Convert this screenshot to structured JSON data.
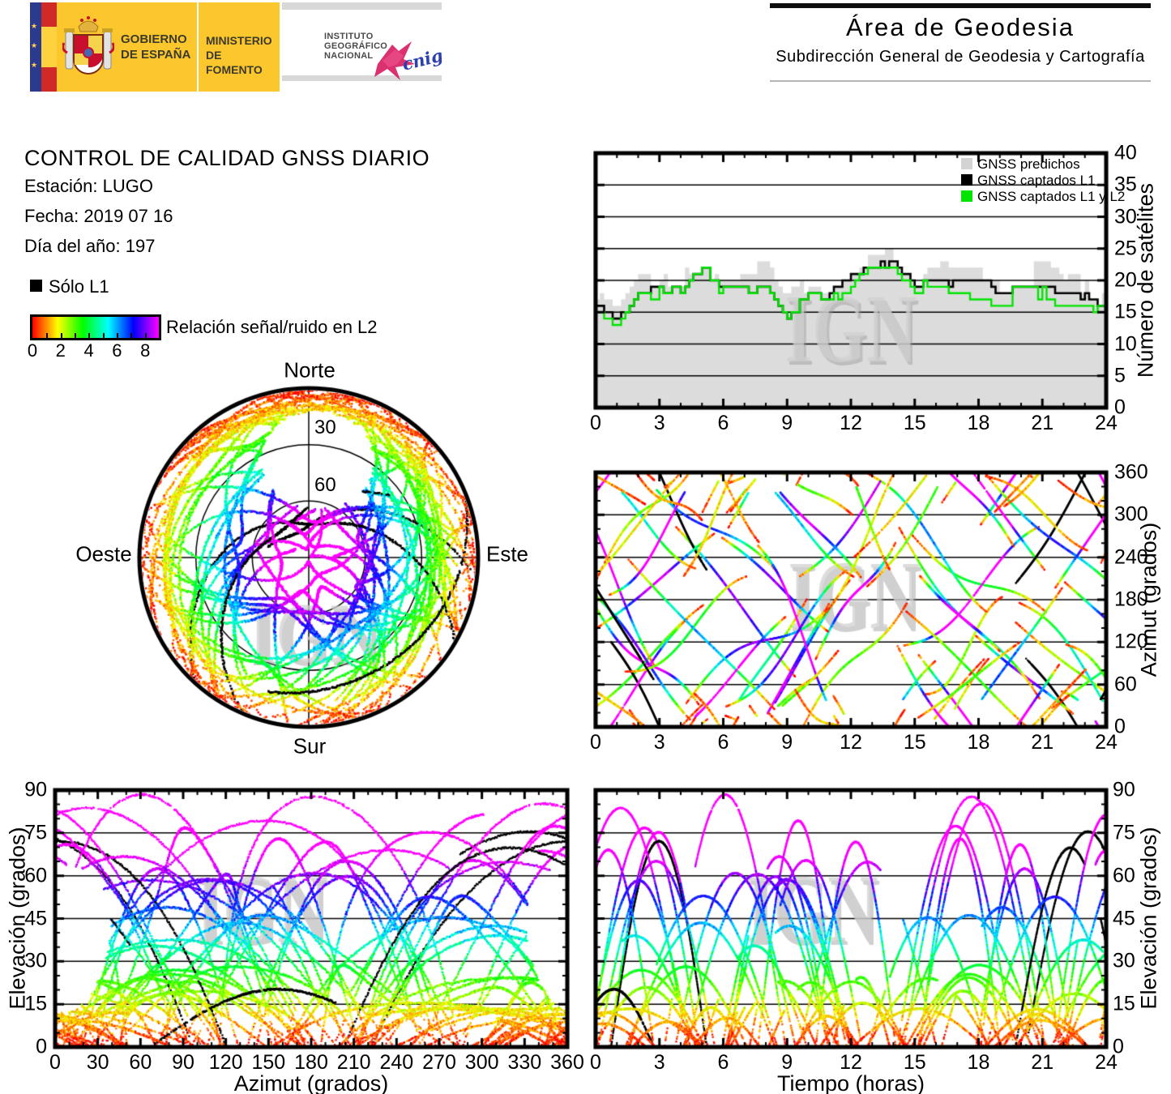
{
  "header_left": {
    "gobierno_lines": [
      "GOBIERNO",
      "DE ESPAÑA"
    ],
    "ministerio_lines": [
      "MINISTERIO",
      "DE FOMENTO"
    ],
    "instituto_lines": [
      "INSTITUTO",
      "GEOGRÁFICO",
      "NACIONAL"
    ],
    "cnig_text": "cnig"
  },
  "header_right": {
    "title": "Área de Geodesia",
    "subtitle": "Subdirección General de Geodesia y Cartografía"
  },
  "report": {
    "title": "CONTROL DE CALIDAD GNSS DIARIO",
    "station": "Estación: LUGO",
    "date": "Fecha: 2019 07 16",
    "doy": "Día del año: 197"
  },
  "legend": {
    "solo_l1": "Sólo L1",
    "colorbar_label": "Relación señal/ruido en L2",
    "colorbar_ticks": [
      0,
      2,
      4,
      6,
      8
    ],
    "colorbar_range": [
      0,
      9
    ]
  },
  "watermark": "IGN",
  "skyplot_labels": {
    "north": "Norte",
    "south": "Sur",
    "west": "Oeste",
    "east": "Este",
    "ring30": "30",
    "ring60": "60"
  },
  "colors": {
    "banner_yellow": "#fcc62d",
    "eu_navy": "#2b3a8c",
    "flag_red": "#cf2a27",
    "predicted_fill": "#dcdcdc",
    "captured_l1": "#000000",
    "captured_l1l2": "#00e400",
    "watermark_gray": "#c8c8c8"
  },
  "chart_data": [
    {
      "id": "satellite_count",
      "type": "area",
      "position": "top-right",
      "title": "",
      "xlabel": "",
      "ylabel": "Número de satélites",
      "xlim": [
        0,
        24
      ],
      "ylim": [
        0,
        40
      ],
      "xticks": [
        0,
        3,
        6,
        9,
        12,
        15,
        18,
        21,
        24
      ],
      "yticks": [
        0,
        5,
        10,
        15,
        20,
        25,
        30,
        35,
        40
      ],
      "grid_y": [
        5,
        10,
        15,
        20,
        25,
        30,
        35
      ],
      "legend": [
        {
          "label": "GNSS predichos",
          "color": "#d3d3d3"
        },
        {
          "label": "GNSS captados L1",
          "color": "#000000"
        },
        {
          "label": "GNSS captados L1 y L2",
          "color": "#00e400"
        }
      ],
      "hours": [
        0,
        1,
        2,
        3,
        4,
        5,
        6,
        7,
        8,
        9,
        10,
        11,
        12,
        13,
        14,
        15,
        16,
        17,
        18,
        19,
        20,
        21,
        22,
        23,
        24
      ],
      "series": [
        {
          "name": "GNSS predichos",
          "values": [
            17,
            15,
            20,
            19,
            19,
            22,
            20,
            20,
            21,
            16,
            19,
            18,
            21,
            23,
            24,
            20,
            21,
            20,
            20,
            19,
            20,
            21,
            19,
            19,
            16
          ]
        },
        {
          "name": "GNSS captados L1",
          "values": [
            16,
            14,
            19,
            18,
            19,
            21,
            19,
            19,
            20,
            15,
            18,
            17,
            21,
            22,
            24,
            20,
            20,
            19,
            19,
            18,
            19,
            19,
            18,
            18,
            15
          ]
        },
        {
          "name": "GNSS captados L1 y L2",
          "values": [
            16,
            14,
            19,
            18,
            18,
            21,
            19,
            19,
            20,
            15,
            18,
            17,
            20,
            22,
            23,
            19,
            20,
            19,
            18,
            17,
            18,
            18,
            17,
            17,
            15
          ]
        }
      ]
    },
    {
      "id": "azimuth_time",
      "type": "scatter",
      "position": "middle-right",
      "title": "",
      "xlabel": "",
      "ylabel": "Azimut (grados)",
      "xlim": [
        0,
        24
      ],
      "ylim": [
        0,
        360
      ],
      "xticks": [
        0,
        3,
        6,
        9,
        12,
        15,
        18,
        21,
        24
      ],
      "yticks": [
        0,
        60,
        120,
        180,
        240,
        300,
        360
      ],
      "grid_y": [
        60,
        120,
        180,
        240,
        300
      ],
      "content": "GNSS satellite azimuth tracks vs time, points coloured by L2 signal/noise ratio (0-9 rainbow), black = L1 only"
    },
    {
      "id": "skyplot",
      "type": "polar",
      "position": "middle-left",
      "title": "",
      "rings_deg": [
        30,
        60
      ],
      "cardinal": [
        "Norte",
        "Este",
        "Sur",
        "Oeste"
      ],
      "content": "Sky plot of GNSS satellite tracks (azimuth/elevation), coloured by L2 signal/noise ratio, void toward north"
    },
    {
      "id": "elevation_azimuth",
      "type": "scatter",
      "position": "bottom-left",
      "title": "",
      "xlabel": "Azimut (grados)",
      "ylabel": "Elevación (grados)",
      "xlim": [
        0,
        360
      ],
      "ylim": [
        0,
        90
      ],
      "xticks": [
        0,
        30,
        60,
        90,
        120,
        150,
        180,
        210,
        240,
        270,
        300,
        330,
        360
      ],
      "yticks": [
        0,
        15,
        30,
        45,
        60,
        75,
        90
      ],
      "grid_y": [
        15,
        30,
        45,
        60,
        75
      ],
      "content": "Elevation-vs-azimuth arches of GNSS tracks coloured by L2 signal/noise ratio"
    },
    {
      "id": "elevation_time",
      "type": "scatter",
      "position": "bottom-right",
      "title": "",
      "xlabel": "Tiempo (horas)",
      "ylabel": "Elevación (grados)",
      "xlim": [
        0,
        24
      ],
      "ylim": [
        0,
        90
      ],
      "xticks": [
        0,
        3,
        6,
        9,
        12,
        15,
        18,
        21,
        24
      ],
      "yticks": [
        0,
        15,
        30,
        45,
        60,
        75,
        90
      ],
      "grid_y": [
        15,
        30,
        45,
        60,
        75
      ],
      "content": "Elevation-vs-time arches of GNSS tracks coloured by L2 signal/noise ratio"
    }
  ],
  "generation": {
    "seed": 197,
    "n_passes": 62,
    "n_low_north_passes": 16,
    "n_black_passes": 5,
    "snr_el_scale": 65,
    "hole_az_deg": 5,
    "hole_el_deg": 38,
    "hole_radius_deg": 26
  }
}
